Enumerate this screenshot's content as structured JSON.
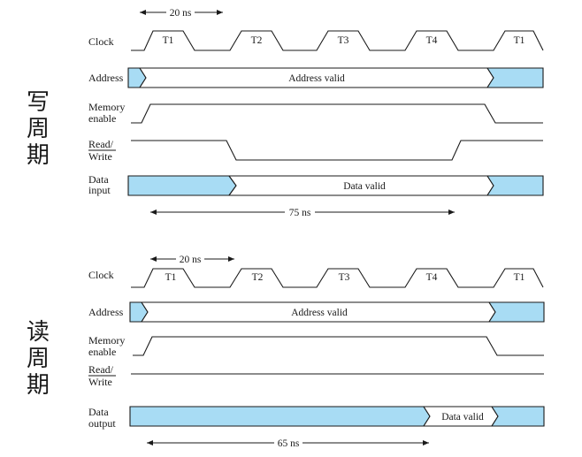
{
  "colors": {
    "fill": "#a8dcf4",
    "line": "#1a1a1a",
    "background": "#ffffff"
  },
  "write_cycle": {
    "title_chars": [
      "写",
      "周",
      "期"
    ],
    "clock_label": "Clock",
    "address_label": "Address",
    "memory_enable_label": [
      "Memory",
      "enable"
    ],
    "read_write_label": [
      "Read/",
      "Write"
    ],
    "data_label": [
      "Data",
      "input"
    ],
    "period_text": "20 ns",
    "clock_ticks": [
      "T1",
      "T2",
      "T3",
      "T4",
      "T1"
    ],
    "address_valid": "Address valid",
    "data_valid": "Data valid",
    "duration_text": "75 ns"
  },
  "read_cycle": {
    "title_chars": [
      "读",
      "周",
      "期"
    ],
    "clock_label": "Clock",
    "address_label": "Address",
    "memory_enable_label": [
      "Memory",
      "enable"
    ],
    "read_write_label": [
      "Read/",
      "Write"
    ],
    "data_label": [
      "Data",
      "output"
    ],
    "period_text": "20 ns",
    "clock_ticks": [
      "T1",
      "T2",
      "T3",
      "T4",
      "T1"
    ],
    "address_valid": "Address valid",
    "data_valid": "Data valid",
    "duration_text": "65 ns"
  }
}
